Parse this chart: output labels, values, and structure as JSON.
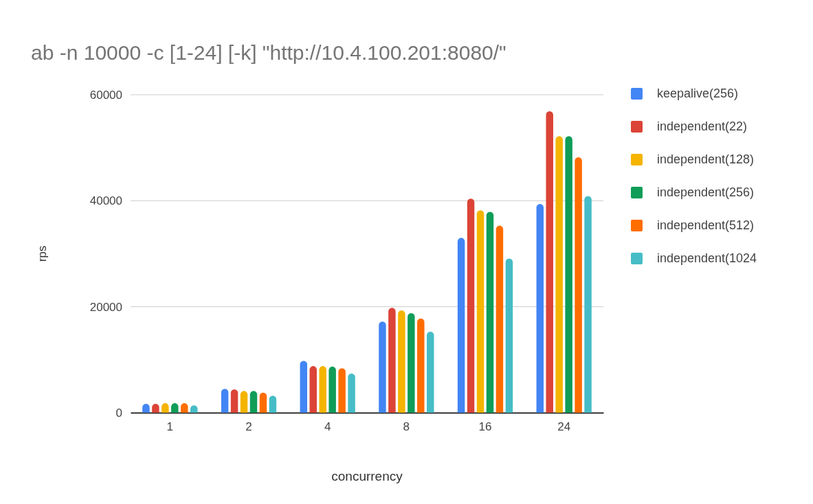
{
  "chart_data": {
    "type": "bar",
    "title": "ab -n 10000 -c [1-24] [-k] \"http://10.4.100.201:8080/\"",
    "xlabel": "concurrency",
    "ylabel": "rps",
    "categories": [
      "1",
      "2",
      "4",
      "8",
      "16",
      "24"
    ],
    "series": [
      {
        "name": "keepalive(256)",
        "color": "#4285f4",
        "values": [
          1700,
          4500,
          9800,
          17200,
          33000,
          39400
        ]
      },
      {
        "name": "independent(22)",
        "color": "#db4437",
        "values": [
          1700,
          4400,
          8800,
          19800,
          40400,
          56900
        ]
      },
      {
        "name": "independent(128)",
        "color": "#f4b400",
        "values": [
          1800,
          4100,
          8800,
          19300,
          38200,
          52200
        ]
      },
      {
        "name": "independent(256)",
        "color": "#0f9d58",
        "values": [
          1800,
          4100,
          8700,
          18800,
          37900,
          52200
        ]
      },
      {
        "name": "independent(512)",
        "color": "#ff6d00",
        "values": [
          1800,
          3800,
          8400,
          17800,
          35300,
          48200
        ]
      },
      {
        "name": "independent(1024",
        "color": "#46bdc6",
        "values": [
          1400,
          3200,
          7400,
          15300,
          29100,
          40900
        ]
      }
    ],
    "ylim": [
      0,
      60000
    ],
    "yticks": [
      0,
      20000,
      40000,
      60000
    ],
    "grid": "y",
    "legend": "right"
  }
}
